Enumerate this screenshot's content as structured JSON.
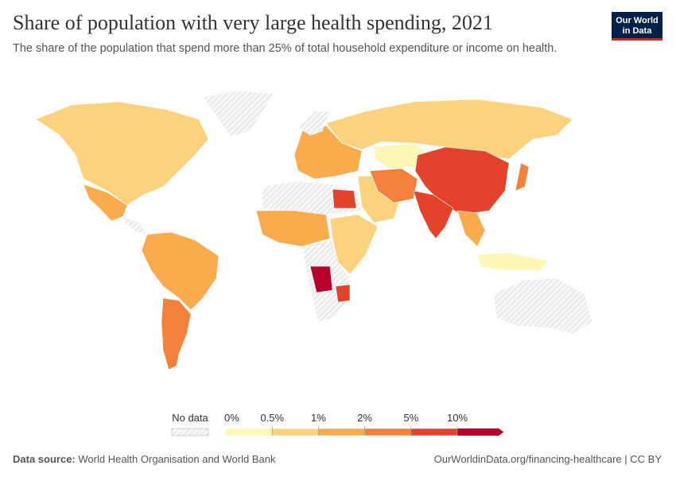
{
  "header": {
    "title": "Share of population with very large health spending, 2021",
    "subtitle": "The share of the population that spend more than 25% of total household expenditure or income on health.",
    "logo": [
      "Our World",
      "in Data"
    ]
  },
  "legend": {
    "no_data": "No data",
    "ticks": [
      "0%",
      "0.5%",
      "1%",
      "2%",
      "5%",
      "10%"
    ],
    "colors": [
      "#fef6b5",
      "#fdd27c",
      "#f9ab4e",
      "#f3813c",
      "#e3422b",
      "#b5002c"
    ]
  },
  "footer": {
    "source_label": "Data source:",
    "source": "World Health Organisation and World Bank",
    "url": "OurWorldinData.org/financing-healthcare | CC BY"
  }
}
